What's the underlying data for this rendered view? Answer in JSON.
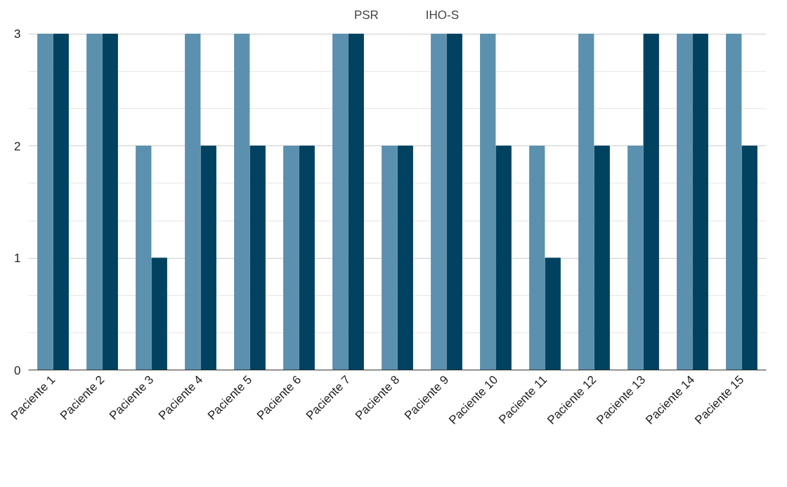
{
  "chart_data": {
    "type": "bar",
    "categories": [
      "Paciente 1",
      "Paciente 2",
      "Paciente 3",
      "Paciente 4",
      "Paciente 5",
      "Paciente 6",
      "Paciente 7",
      "Paciente 8",
      "Paciente 9",
      "Paciente 10",
      "Paciente 11",
      "Paciente 12",
      "Paciente 13",
      "Paciente 14",
      "Paciente 15"
    ],
    "series": [
      {
        "name": "PSR",
        "color": "#5b90ae",
        "values": [
          3,
          3,
          2,
          3,
          3,
          2,
          3,
          2,
          3,
          3,
          2,
          3,
          2,
          3,
          3
        ]
      },
      {
        "name": "IHO-S",
        "color": "#00425f",
        "values": [
          3,
          3,
          1,
          2,
          2,
          2,
          3,
          2,
          3,
          2,
          1,
          2,
          3,
          3,
          2
        ]
      }
    ],
    "ylim": [
      0,
      3
    ],
    "yticks": [
      0,
      1,
      2,
      3
    ],
    "grid": "y",
    "legend": "top"
  }
}
